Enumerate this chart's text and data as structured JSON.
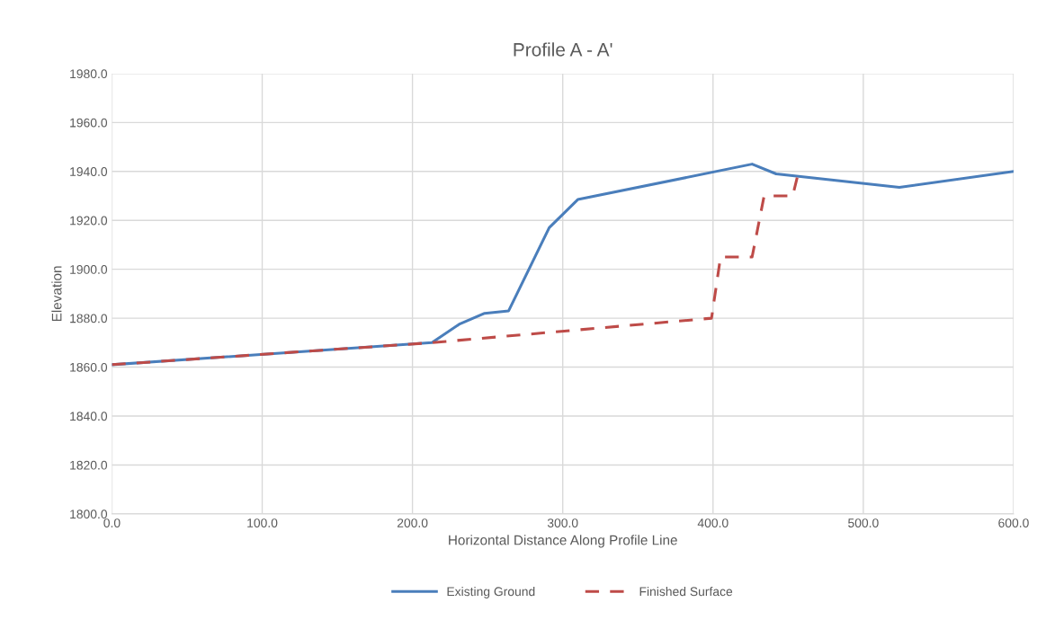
{
  "chart_data": {
    "type": "line",
    "title": "Profile A - A'",
    "xlabel": "Horizontal Distance Along Profile Line",
    "ylabel": "Elevation",
    "xlim": [
      0,
      600
    ],
    "xticks": [
      {
        "value": 0,
        "label": "0.0"
      },
      {
        "value": 100,
        "label": "100.0"
      },
      {
        "value": 200,
        "label": "200.0"
      },
      {
        "value": 300,
        "label": "300.0"
      },
      {
        "value": 400,
        "label": "400.0"
      },
      {
        "value": 500,
        "label": "500.0"
      },
      {
        "value": 600,
        "label": "600.0"
      }
    ],
    "ylim": [
      1800,
      1980
    ],
    "yticks": [
      {
        "value": 1800,
        "label": "1800.0"
      },
      {
        "value": 1820,
        "label": "1820.0"
      },
      {
        "value": 1840,
        "label": "1840.0"
      },
      {
        "value": 1860,
        "label": "1860.0"
      },
      {
        "value": 1880,
        "label": "1880.0"
      },
      {
        "value": 1900,
        "label": "1900.0"
      },
      {
        "value": 1920,
        "label": "1920.0"
      },
      {
        "value": 1940,
        "label": "1940.0"
      },
      {
        "value": 1960,
        "label": "1960.0"
      },
      {
        "value": 1980,
        "label": "1980.0"
      }
    ],
    "grid": true,
    "legend": "bottom",
    "marker": "none",
    "series": [
      {
        "name": "Existing Ground",
        "color": "#4a7ebb",
        "line_style": "solid",
        "x": [
          0,
          213,
          231,
          248,
          264,
          291,
          310,
          426,
          442,
          524,
          600
        ],
        "values": [
          1861,
          1870,
          1877.5,
          1882,
          1883,
          1917,
          1928.5,
          1943,
          1939,
          1933.5,
          1940
        ]
      },
      {
        "name": "Finished Surface",
        "color": "#be4b48",
        "line_style": "dashed",
        "x": [
          0,
          213,
          399,
          405,
          426,
          434,
          453,
          456
        ],
        "values": [
          1861,
          1870,
          1880,
          1905,
          1905,
          1930,
          1930,
          1937.5
        ]
      }
    ]
  }
}
